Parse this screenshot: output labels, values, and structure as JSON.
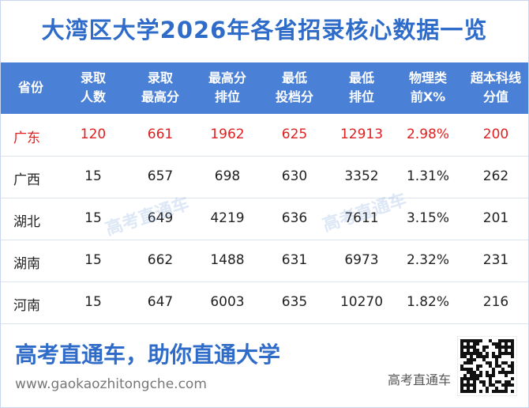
{
  "title": "大湾区大学2026年各省招录核心数据一览",
  "table": {
    "header": [
      [
        "省份"
      ],
      [
        "录取",
        "人数"
      ],
      [
        "录取",
        "最高分"
      ],
      [
        "最高分",
        "排位"
      ],
      [
        "最低",
        "投档分"
      ],
      [
        "最低",
        "排位"
      ],
      [
        "物理类",
        "前X%"
      ],
      [
        "超本科线",
        "分值"
      ]
    ],
    "rows": [
      [
        "广东",
        "120",
        "661",
        "1962",
        "625",
        "12913",
        "2.98%",
        "200"
      ],
      [
        "广西",
        "15",
        "657",
        "698",
        "630",
        "3352",
        "1.31%",
        "262"
      ],
      [
        "湖北",
        "15",
        "649",
        "4219",
        "636",
        "7611",
        "3.15%",
        "201"
      ],
      [
        "湖南",
        "15",
        "662",
        "1488",
        "631",
        "6973",
        "2.32%",
        "231"
      ],
      [
        "河南",
        "15",
        "647",
        "6003",
        "635",
        "10270",
        "1.82%",
        "216"
      ]
    ]
  },
  "watermarks": [
    "高考直通车",
    "高考直通车"
  ],
  "footer": {
    "slogan": "高考直通车，助你直通大学",
    "url": "www.gaokaozhitongche.com",
    "brand": "高考直通车"
  }
}
